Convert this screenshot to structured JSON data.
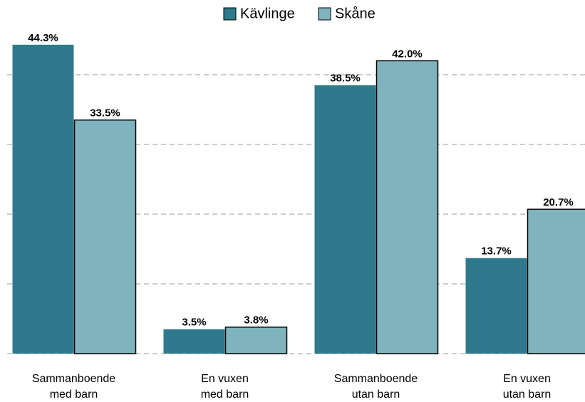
{
  "chart_data": {
    "type": "bar",
    "categories": [
      "Sammanboende\nmed barn",
      "En vuxen\nmed barn",
      "Sammanboende\nutan barn",
      "En vuxen\nutan barn"
    ],
    "series": [
      {
        "name": "Kävlinge",
        "color": "#2e7a8c",
        "values": [
          44.3,
          3.5,
          38.5,
          13.7
        ],
        "value_labels": [
          "44.3%",
          "3.5%",
          "38.5%",
          "13.7%"
        ]
      },
      {
        "name": "Skåne",
        "color": "#7fb3bd",
        "values": [
          33.5,
          3.8,
          42.0,
          20.7
        ],
        "value_labels": [
          "33.5%",
          "3.8%",
          "42.0%",
          "20.7%"
        ]
      }
    ],
    "ylim": [
      0,
      46
    ],
    "yticks": [
      0,
      10,
      20,
      30,
      40
    ],
    "grid": true,
    "legend": "top"
  }
}
